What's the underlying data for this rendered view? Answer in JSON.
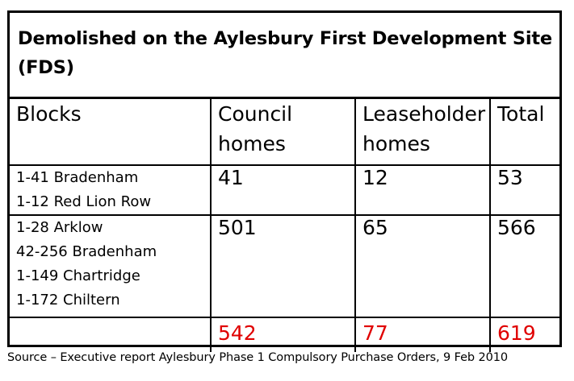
{
  "title": {
    "line1": "Demolished on the Aylesbury First Development Site",
    "line2": "(FDS)"
  },
  "headers": {
    "blocks": "Blocks",
    "council_line1": "Council",
    "council_line2": "homes",
    "leaseholder_line1": "Leaseholder",
    "leaseholder_line2": "homes",
    "total": "Total"
  },
  "rows": [
    {
      "blocks": [
        "1-41 Bradenham",
        "1-12 Red Lion Row"
      ],
      "council": "41",
      "leaseholder": "12",
      "total": "53"
    },
    {
      "blocks": [
        "1-28 Arklow",
        "42-256 Bradenham",
        "1-149 Chartridge",
        "1-172 Chiltern"
      ],
      "council": "501",
      "leaseholder": "65",
      "total": "566"
    }
  ],
  "totals": {
    "council": "542",
    "leaseholder": "77",
    "total": "619"
  },
  "colors": {
    "totals_text": "#e00000",
    "border": "#000000"
  },
  "source": "Source – Executive report Aylesbury Phase 1 Compulsory Purchase Orders, 9 Feb 2010"
}
